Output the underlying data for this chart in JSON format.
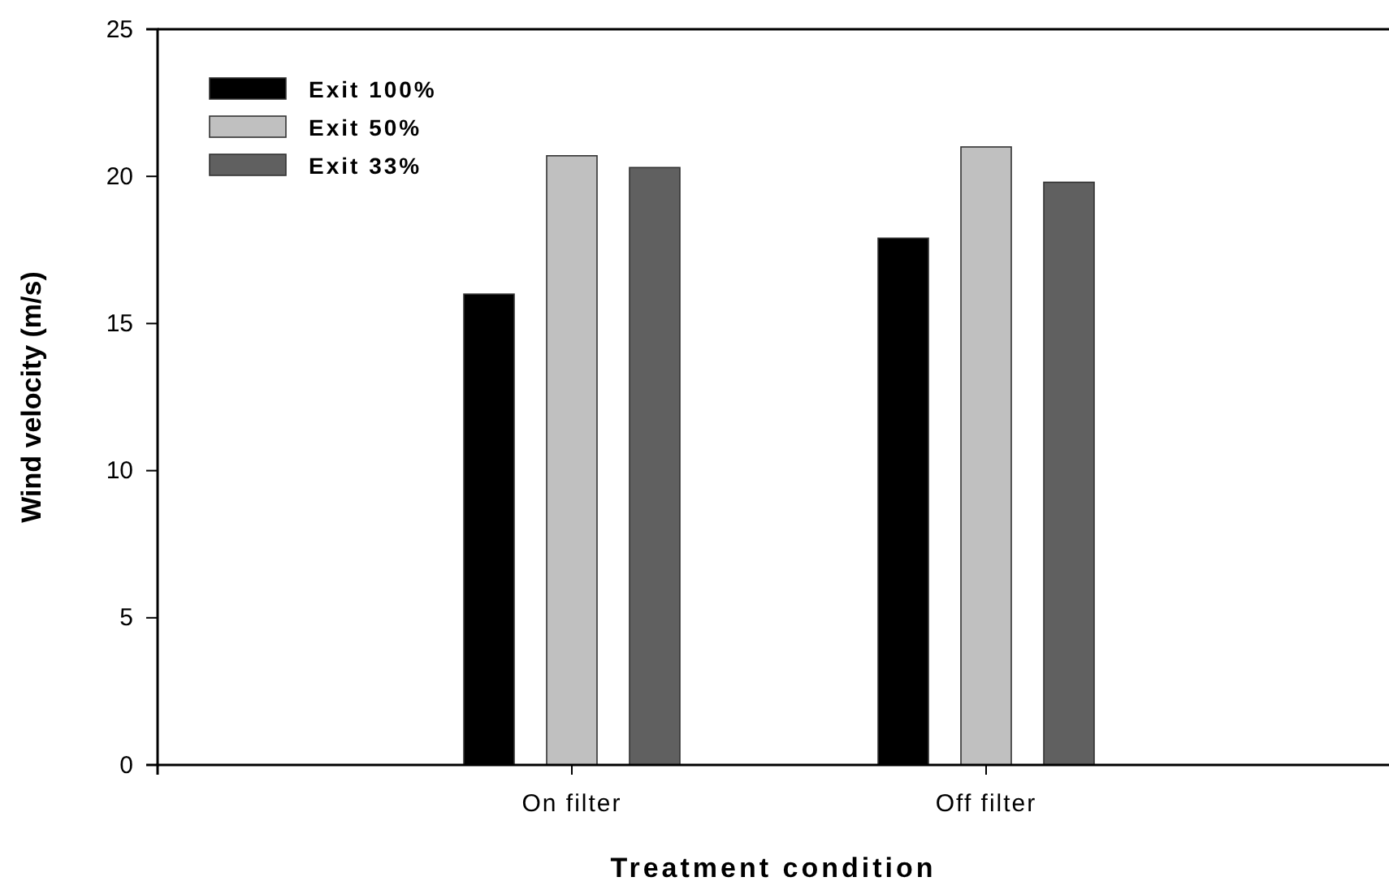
{
  "chart_data": {
    "type": "bar",
    "xlabel": "Treatment condition",
    "ylabel": "Wind velocity (m/s)",
    "categories": [
      "On filter",
      "Off filter"
    ],
    "series": [
      {
        "name": "Exit 100%",
        "color": "#000000",
        "values": [
          16.0,
          17.9
        ]
      },
      {
        "name": "Exit 50%",
        "color": "#c0c0c0",
        "values": [
          20.7,
          21.0
        ]
      },
      {
        "name": "Exit 33%",
        "color": "#606060",
        "values": [
          20.3,
          19.8
        ]
      }
    ],
    "ylim": [
      0,
      25
    ],
    "yticks": [
      0,
      5,
      10,
      15,
      20,
      25
    ],
    "legend": "top left",
    "grid": false
  }
}
